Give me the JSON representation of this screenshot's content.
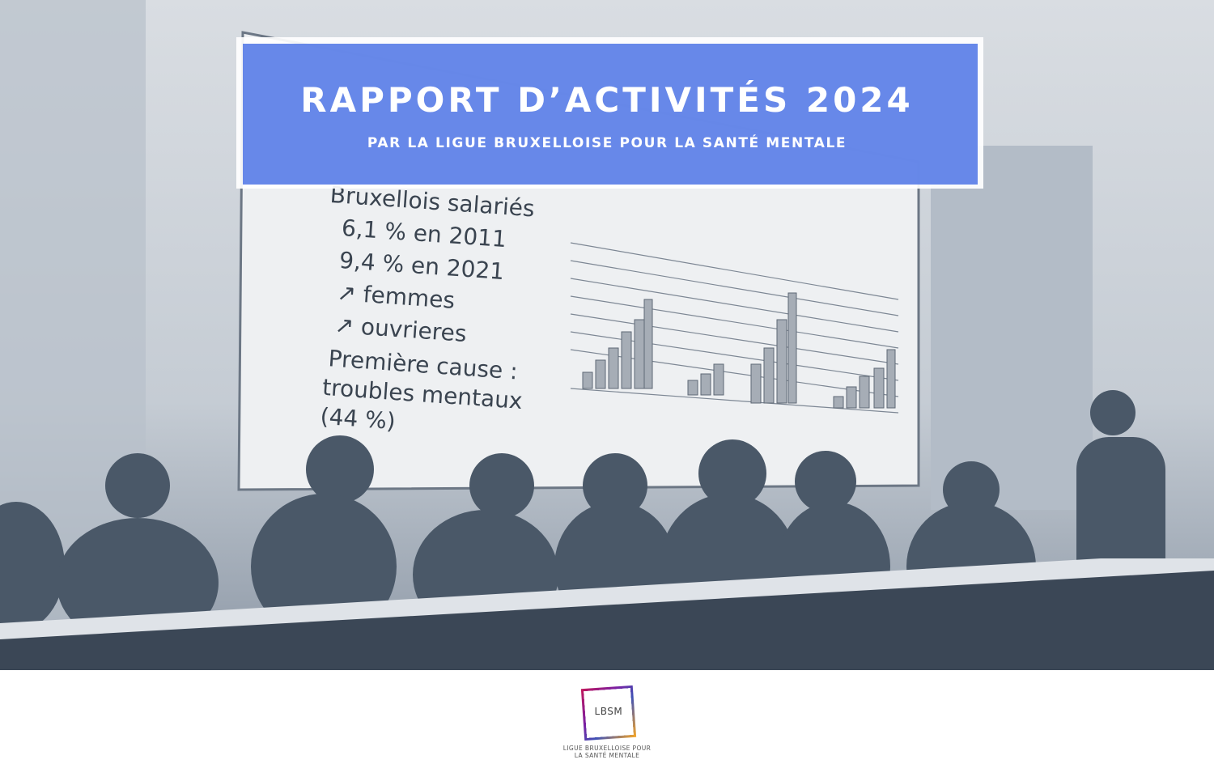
{
  "header": {
    "title": "RAPPORT D’ACTIVITÉS 2024",
    "subtitle": "PAR LA LIGUE BRUXELLOISE POUR LA SANTÉ MENTALE"
  },
  "slide": {
    "heading": "Bruxellois salariés",
    "bullets": [
      "6,1 % en 2011",
      "9,4 % en 2021",
      "↗ femmes",
      "↗ ouvrieres",
      "Première cause :",
      "troubles mentaux",
      "(44 %)"
    ]
  },
  "logo": {
    "acronym": "LBSM",
    "name_lines": [
      "LIGUE BRUXELLOISE POUR",
      "LA SANTÉ MENTALE"
    ]
  }
}
